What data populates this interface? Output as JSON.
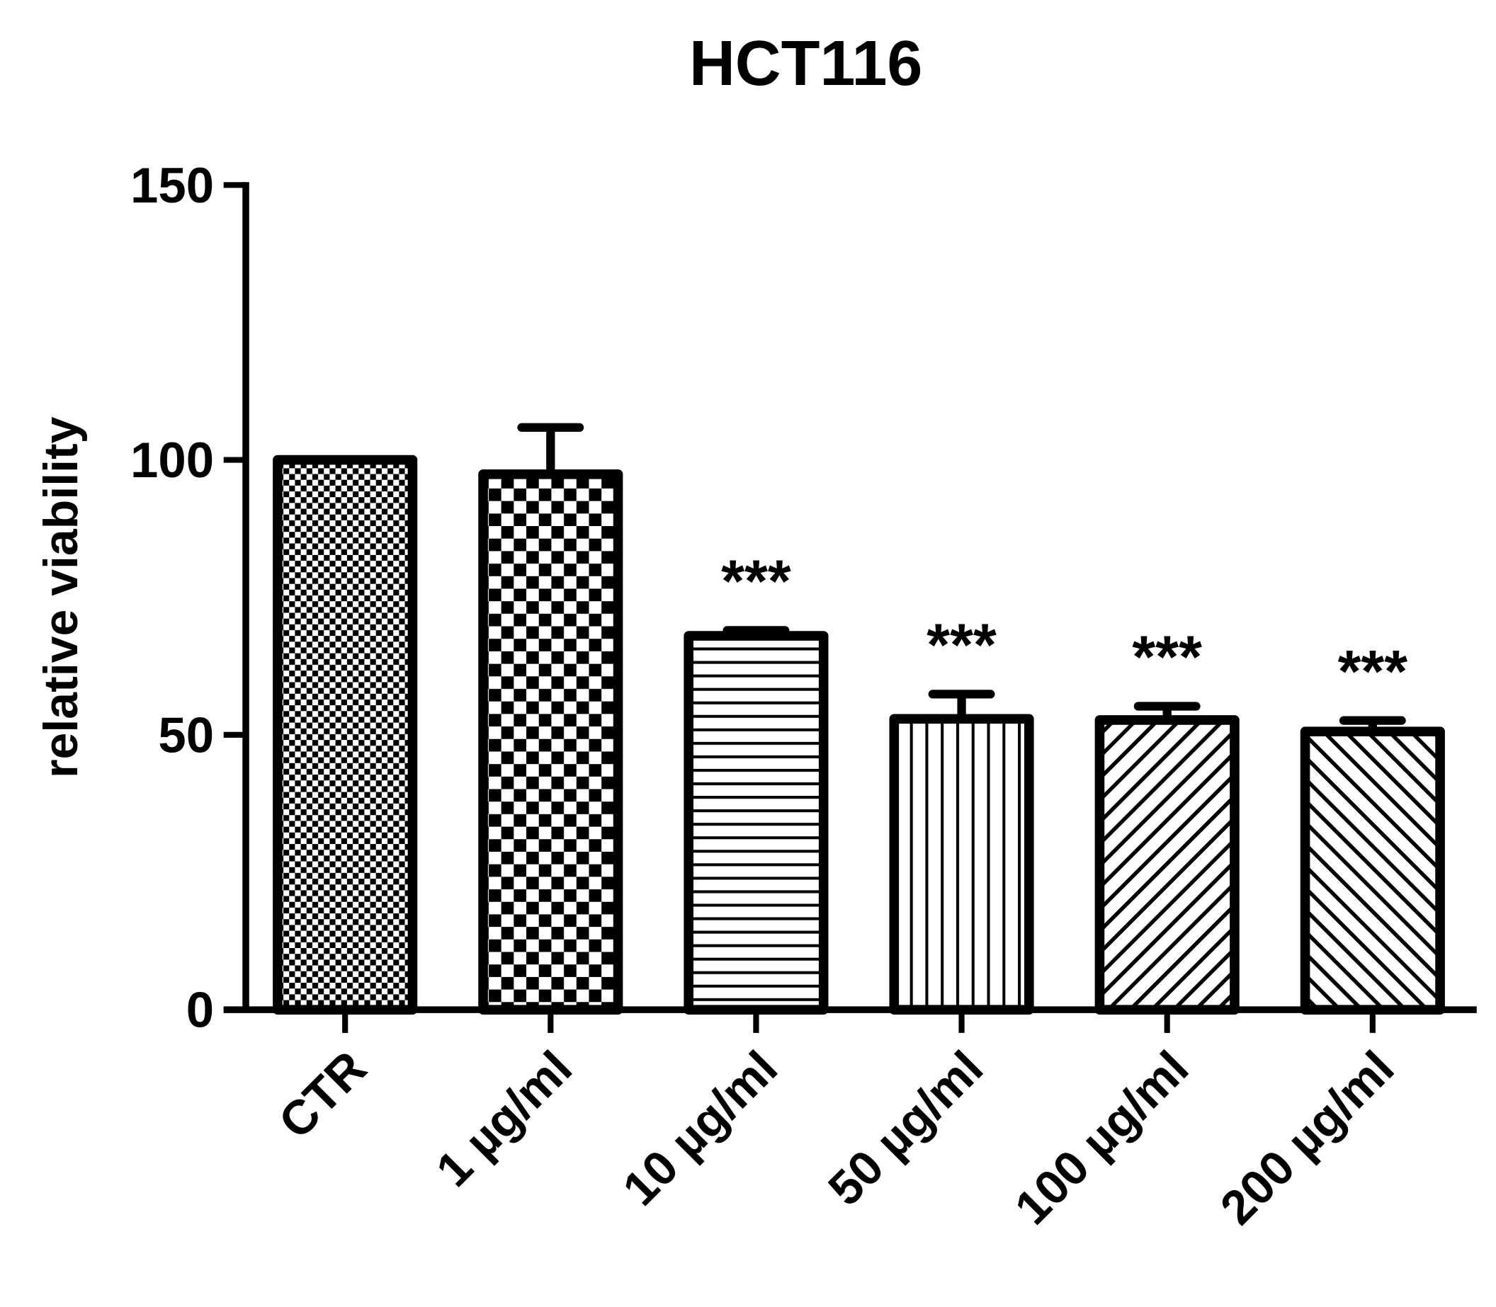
{
  "chart_data": {
    "type": "bar",
    "title": "HCT116",
    "ylabel": "relative viability",
    "categories": [
      "CTR",
      "1 µg/ml",
      "10 µg/ml",
      "50 µg/ml",
      "100 µg/ml",
      "200 µg/ml"
    ],
    "values": [
      100,
      97.4,
      68,
      52.9,
      52.7,
      50.6
    ],
    "errors": [
      0,
      8.5,
      1,
      4.5,
      2.5,
      2
    ],
    "annotations": [
      null,
      null,
      "***",
      "***",
      "***",
      "***"
    ],
    "patterns": [
      "checker-fine",
      "checker-coarse",
      "horizontal",
      "vertical",
      "diagonal-up",
      "diagonal-down"
    ],
    "color": "#000000",
    "ylim": [
      0,
      150
    ],
    "yticks": [
      0,
      50,
      100,
      150
    ],
    "grid": false
  }
}
